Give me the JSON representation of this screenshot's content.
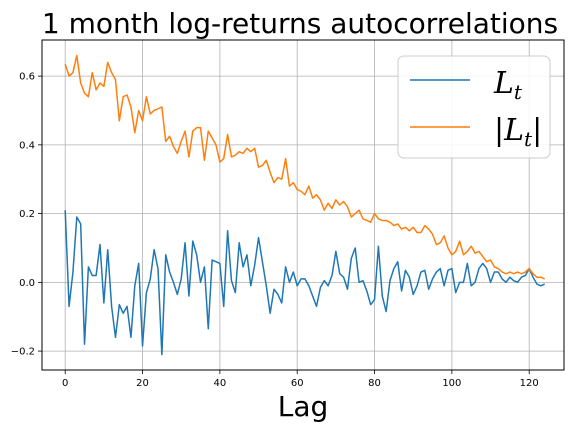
{
  "chart_data": {
    "type": "line",
    "title": "1 month log-returns autocorrelations",
    "xlabel": "Lag",
    "ylabel": "",
    "xlim": [
      -6,
      129
    ],
    "ylim": [
      -0.255,
      0.705
    ],
    "xticks": [
      0,
      20,
      40,
      60,
      80,
      100,
      120
    ],
    "yticks": [
      -0.2,
      0.0,
      0.2,
      0.4,
      0.6
    ],
    "xtick_labels": [
      "0",
      "20",
      "40",
      "60",
      "80",
      "100",
      "120"
    ],
    "ytick_labels": [
      "−0.2",
      "0.0",
      "0.2",
      "0.4",
      "0.6"
    ],
    "grid": true,
    "legend_position": "top-right",
    "series": [
      {
        "name": "L_t",
        "color": "#1f77b4",
        "x_start": 0,
        "values": [
          0.21,
          -0.07,
          0.03,
          0.19,
          0.17,
          -0.18,
          0.045,
          0.02,
          0.02,
          0.11,
          -0.06,
          0.095,
          -0.07,
          -0.16,
          -0.065,
          -0.09,
          -0.07,
          -0.16,
          -0.01,
          0.055,
          -0.185,
          -0.03,
          0.01,
          0.095,
          0.04,
          -0.21,
          0.08,
          0.03,
          0.0,
          -0.035,
          0.01,
          0.115,
          -0.04,
          0.12,
          0.08,
          0.0,
          0.045,
          -0.135,
          0.065,
          0.06,
          0.055,
          -0.07,
          0.15,
          0.005,
          -0.03,
          0.115,
          0.045,
          0.08,
          -0.01,
          0.05,
          0.13,
          0.06,
          -0.01,
          -0.09,
          -0.02,
          -0.035,
          -0.06,
          0.045,
          0.0,
          0.03,
          -0.01,
          0.01,
          0.01,
          -0.01,
          -0.04,
          -0.07,
          -0.015,
          0.005,
          -0.01,
          0.02,
          0.09,
          0.025,
          0.015,
          -0.02,
          0.07,
          0.1,
          0.0,
          0.005,
          -0.025,
          -0.065,
          -0.05,
          0.105,
          -0.04,
          -0.085,
          0.005,
          0.04,
          0.06,
          -0.025,
          0.035,
          0.015,
          -0.035,
          -0.01,
          0.03,
          0.035,
          -0.02,
          0.01,
          0.03,
          0.04,
          -0.01,
          0.035,
          0.04,
          -0.03,
          0.0,
          0.0,
          0.055,
          -0.01,
          0.0,
          0.04,
          0.055,
          0.04,
          0.0,
          0.03,
          0.03,
          0.01,
          0.0,
          0.015,
          0.005,
          0.0,
          0.015,
          0.02,
          0.04,
          0.015,
          -0.005,
          -0.01,
          -0.005
        ]
      },
      {
        "name": "|L_t|",
        "color": "#ff7f0e",
        "x_start": 0,
        "values": [
          0.635,
          0.6,
          0.61,
          0.66,
          0.58,
          0.55,
          0.54,
          0.61,
          0.56,
          0.58,
          0.57,
          0.64,
          0.61,
          0.59,
          0.47,
          0.54,
          0.545,
          0.51,
          0.435,
          0.5,
          0.47,
          0.54,
          0.49,
          0.5,
          0.505,
          0.51,
          0.41,
          0.425,
          0.395,
          0.375,
          0.41,
          0.44,
          0.365,
          0.44,
          0.45,
          0.45,
          0.355,
          0.44,
          0.42,
          0.4,
          0.35,
          0.36,
          0.43,
          0.365,
          0.37,
          0.38,
          0.375,
          0.39,
          0.38,
          0.39,
          0.335,
          0.34,
          0.355,
          0.32,
          0.29,
          0.305,
          0.3,
          0.36,
          0.28,
          0.29,
          0.27,
          0.265,
          0.255,
          0.28,
          0.245,
          0.255,
          0.24,
          0.21,
          0.23,
          0.215,
          0.24,
          0.225,
          0.235,
          0.22,
          0.19,
          0.2,
          0.21,
          0.185,
          0.18,
          0.175,
          0.2,
          0.185,
          0.18,
          0.18,
          0.175,
          0.165,
          0.17,
          0.155,
          0.16,
          0.15,
          0.16,
          0.145,
          0.145,
          0.165,
          0.155,
          0.14,
          0.11,
          0.115,
          0.135,
          0.1,
          0.08,
          0.09,
          0.12,
          0.08,
          0.09,
          0.105,
          0.085,
          0.09,
          0.075,
          0.06,
          0.065,
          0.045,
          0.04,
          0.03,
          0.025,
          0.03,
          0.025,
          0.03,
          0.025,
          0.03,
          0.04,
          0.025,
          0.015,
          0.015,
          0.01
        ]
      }
    ]
  }
}
